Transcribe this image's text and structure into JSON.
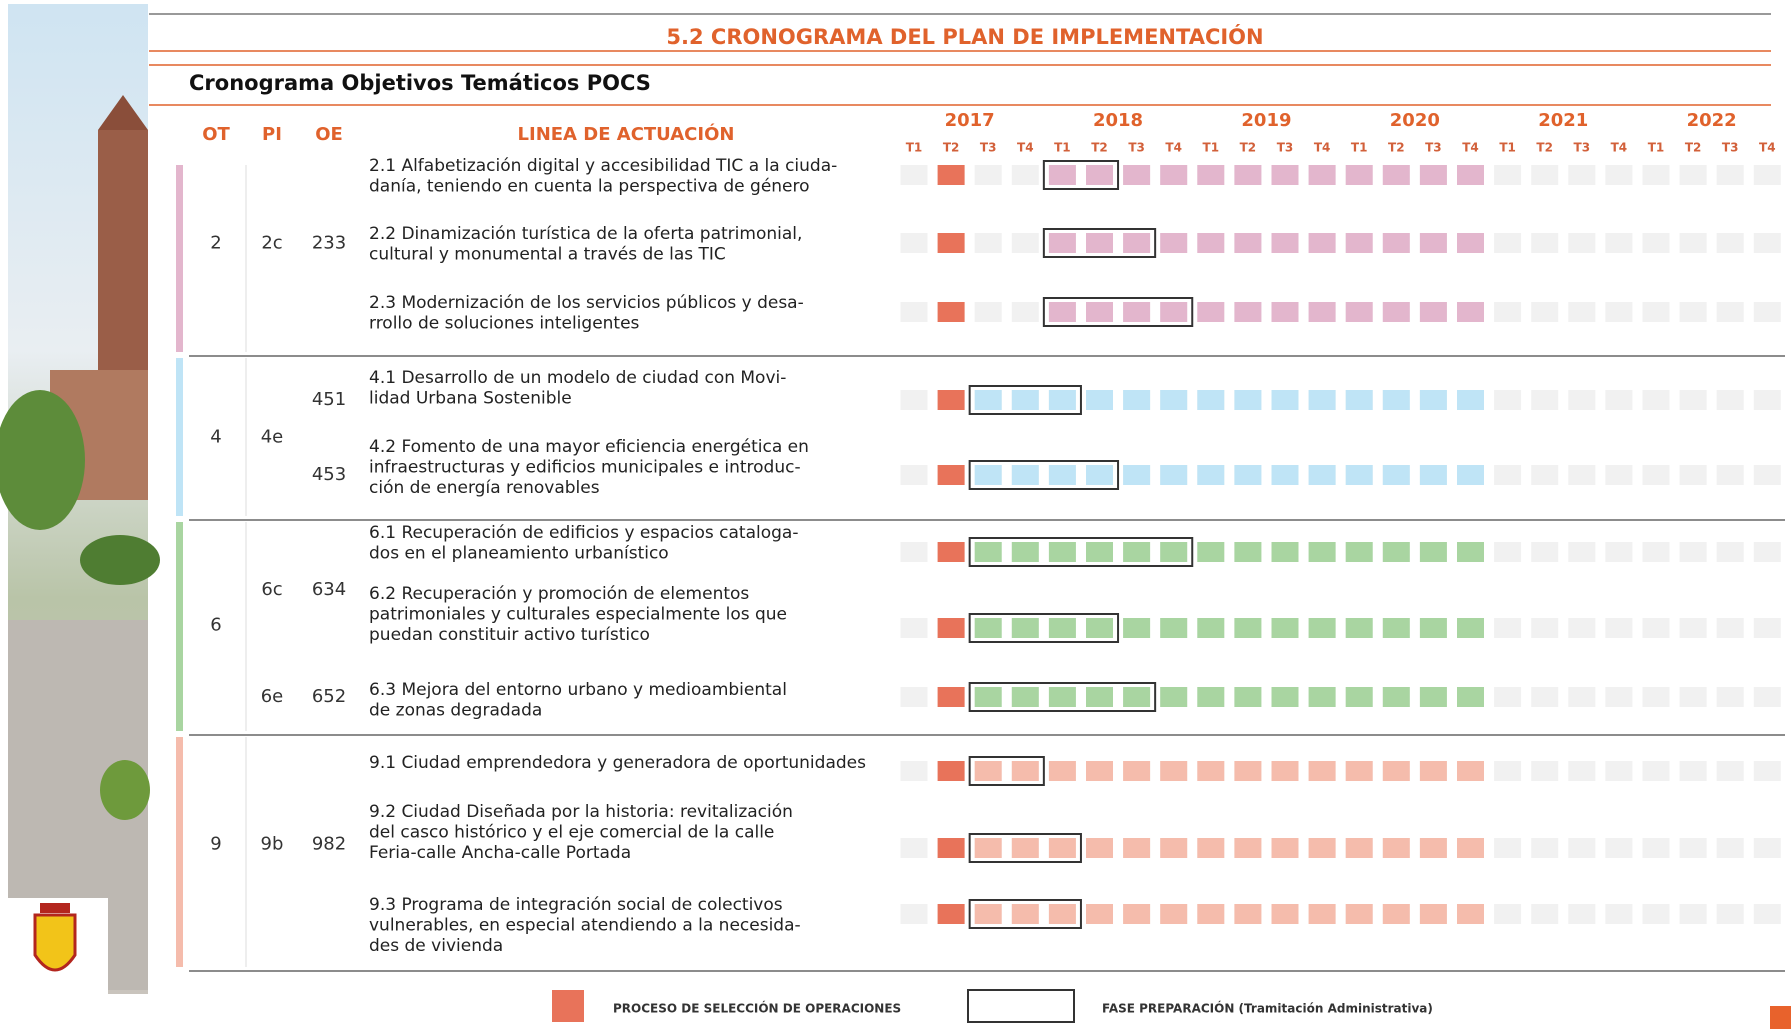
{
  "header": {
    "title": "5.2 CRONOGRAMA DEL PLAN DE IMPLEMENTACIÓN",
    "subtitle": "Cronograma Objetivos Temáticos POCS"
  },
  "columns": [
    "OT",
    "PI",
    "OE",
    "LINEA DE ACTUACIÓN"
  ],
  "timeline": {
    "years": [
      "2017",
      "2018",
      "2019",
      "2020",
      "2021",
      "2022"
    ],
    "quarters": [
      "T1",
      "T2",
      "T3",
      "T4"
    ]
  },
  "selection_color": "#e8735a",
  "groups": [
    {
      "ot": "2",
      "color": "#e3b6cd",
      "pis": [
        {
          "pi": "2c",
          "oes": [
            {
              "oe": "233",
              "lines": [
                {
                  "text": [
                    "2.1 Alfabetización digital y accesibilidad TIC a la ciuda-",
                    "danía, teniendo en cuenta la perspectiva de género"
                  ],
                  "selection": 1,
                  "preparation": [
                    4,
                    5
                  ],
                  "end": 15
                },
                {
                  "text": [
                    "2.2 Dinamización turística de la oferta patrimonial,",
                    "cultural y monumental a través de las TIC"
                  ],
                  "selection": 1,
                  "preparation": [
                    4,
                    6
                  ],
                  "end": 15
                },
                {
                  "text": [
                    "2.3 Modernización de los servicios públicos y desa-",
                    "rrollo de soluciones inteligentes"
                  ],
                  "selection": 1,
                  "preparation": [
                    4,
                    7
                  ],
                  "end": 15
                }
              ]
            }
          ]
        }
      ]
    },
    {
      "ot": "4",
      "color": "#bfe4f6",
      "pis": [
        {
          "pi": "4e",
          "oes": [
            {
              "oe": "451",
              "lines": [
                {
                  "text": [
                    "4.1  Desarrollo de un modelo de ciudad con Movi-",
                    "lidad Urbana Sostenible"
                  ],
                  "selection": 1,
                  "preparation": [
                    2,
                    4
                  ],
                  "end": 15
                }
              ]
            },
            {
              "oe": "453",
              "lines": [
                {
                  "text": [
                    "4.2 Fomento de una mayor eficiencia energética en",
                    "infraestructuras y edificios municipales e introduc-",
                    "ción de energía renovables"
                  ],
                  "selection": 1,
                  "preparation": [
                    2,
                    5
                  ],
                  "end": 15
                }
              ]
            }
          ]
        }
      ]
    },
    {
      "ot": "6",
      "color": "#a9d5a1",
      "pis": [
        {
          "pi": "6c",
          "oes": [
            {
              "oe": "634",
              "lines": [
                {
                  "text": [
                    "6.1 Recuperación de edificios y espacios cataloga-",
                    "dos en el planeamiento urbanístico"
                  ],
                  "selection": 1,
                  "preparation": [
                    2,
                    7
                  ],
                  "end": 15
                },
                {
                  "text": [
                    "6.2 Recuperación y promoción de elementos",
                    "patrimoniales y culturales especialmente los que",
                    "puedan constituir activo turístico"
                  ],
                  "selection": 1,
                  "preparation": [
                    2,
                    5
                  ],
                  "end": 15
                }
              ]
            }
          ]
        },
        {
          "pi": "6e",
          "oes": [
            {
              "oe": "652",
              "lines": [
                {
                  "text": [
                    "6.3 Mejora del entorno urbano y medioambiental",
                    "de zonas degradada"
                  ],
                  "selection": 1,
                  "preparation": [
                    2,
                    6
                  ],
                  "end": 15
                }
              ]
            }
          ]
        }
      ]
    },
    {
      "ot": "9",
      "color": "#f5bcac",
      "pis": [
        {
          "pi": "9b",
          "oes": [
            {
              "oe": "982",
              "lines": [
                {
                  "text": [
                    "9.1 Ciudad emprendedora y generadora de oportunidades"
                  ],
                  "selection": 1,
                  "preparation": [
                    2,
                    3
                  ],
                  "end": 15
                },
                {
                  "text": [
                    "9.2 Ciudad Diseñada por la historia: revitalización",
                    "del casco histórico y el eje comercial de la calle",
                    "Feria-calle Ancha-calle Portada"
                  ],
                  "selection": 1,
                  "preparation": [
                    2,
                    4
                  ],
                  "end": 15
                },
                {
                  "text": [
                    "9.3 Programa de integración social de colectivos",
                    "vulnerables, en especial atendiendo a la necesida-",
                    "des de vivienda"
                  ],
                  "selection": 1,
                  "preparation": [
                    2,
                    4
                  ],
                  "end": 15
                }
              ]
            }
          ]
        }
      ]
    }
  ],
  "legend": {
    "selection": "PROCESO DE SELECCIÓN DE OPERACIONES",
    "preparation": "FASE PREPARACIÓN (Tramitación Administrativa)"
  }
}
